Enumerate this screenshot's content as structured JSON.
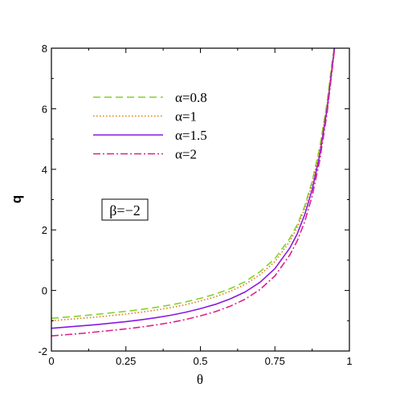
{
  "chart_data": {
    "type": "line",
    "xlabel": "θ",
    "ylabel": "q",
    "xlim": [
      0,
      1
    ],
    "ylim": [
      -2,
      8
    ],
    "xticks": [
      0,
      0.25,
      0.5,
      0.75,
      1
    ],
    "xtick_labels": [
      "0",
      "0.25",
      "0.5",
      "0.75",
      "1"
    ],
    "yticks": [
      -2,
      0,
      2,
      4,
      6,
      8
    ],
    "ytick_labels": [
      "-2",
      "0",
      "2",
      "4",
      "6",
      "8"
    ],
    "grid": false,
    "legend_position": "upper-left",
    "annotation": "β=−2",
    "x": [
      0,
      0.05,
      0.1,
      0.15,
      0.2,
      0.25,
      0.3,
      0.35,
      0.4,
      0.45,
      0.5,
      0.55,
      0.6,
      0.65,
      0.7,
      0.75,
      0.8,
      0.825,
      0.85,
      0.875,
      0.9,
      0.925,
      0.94,
      0.95
    ],
    "series": [
      {
        "name": "α=0.8",
        "color": "#7fd42a",
        "dash": "dash",
        "values": [
          -0.92,
          -0.88,
          -0.84,
          -0.79,
          -0.74,
          -0.69,
          -0.63,
          -0.56,
          -0.48,
          -0.38,
          -0.26,
          -0.12,
          0.06,
          0.29,
          0.62,
          1.05,
          1.72,
          2.17,
          2.78,
          3.6,
          4.7,
          6.2,
          7.4,
          8.1
        ]
      },
      {
        "name": "α=1",
        "color": "#e07a10",
        "dash": "dot",
        "values": [
          -1.0,
          -0.96,
          -0.92,
          -0.88,
          -0.83,
          -0.78,
          -0.72,
          -0.65,
          -0.57,
          -0.47,
          -0.35,
          -0.21,
          -0.03,
          0.2,
          0.52,
          0.95,
          1.62,
          2.08,
          2.7,
          3.52,
          4.62,
          6.12,
          7.3,
          8.05
        ]
      },
      {
        "name": "α=1.5",
        "color": "#8a18e0",
        "dash": "solid",
        "values": [
          -1.25,
          -1.21,
          -1.17,
          -1.13,
          -1.08,
          -1.03,
          -0.97,
          -0.9,
          -0.82,
          -0.72,
          -0.6,
          -0.46,
          -0.28,
          -0.05,
          0.27,
          0.72,
          1.4,
          1.87,
          2.5,
          3.33,
          4.45,
          5.98,
          7.2,
          8.0
        ]
      },
      {
        "name": "α=2",
        "color": "#e0208a",
        "dash": "dashdot",
        "values": [
          -1.5,
          -1.46,
          -1.42,
          -1.37,
          -1.32,
          -1.27,
          -1.21,
          -1.14,
          -1.06,
          -0.96,
          -0.84,
          -0.7,
          -0.52,
          -0.29,
          0.03,
          0.48,
          1.17,
          1.64,
          2.27,
          3.12,
          4.27,
          5.85,
          7.1,
          7.95
        ]
      }
    ]
  }
}
